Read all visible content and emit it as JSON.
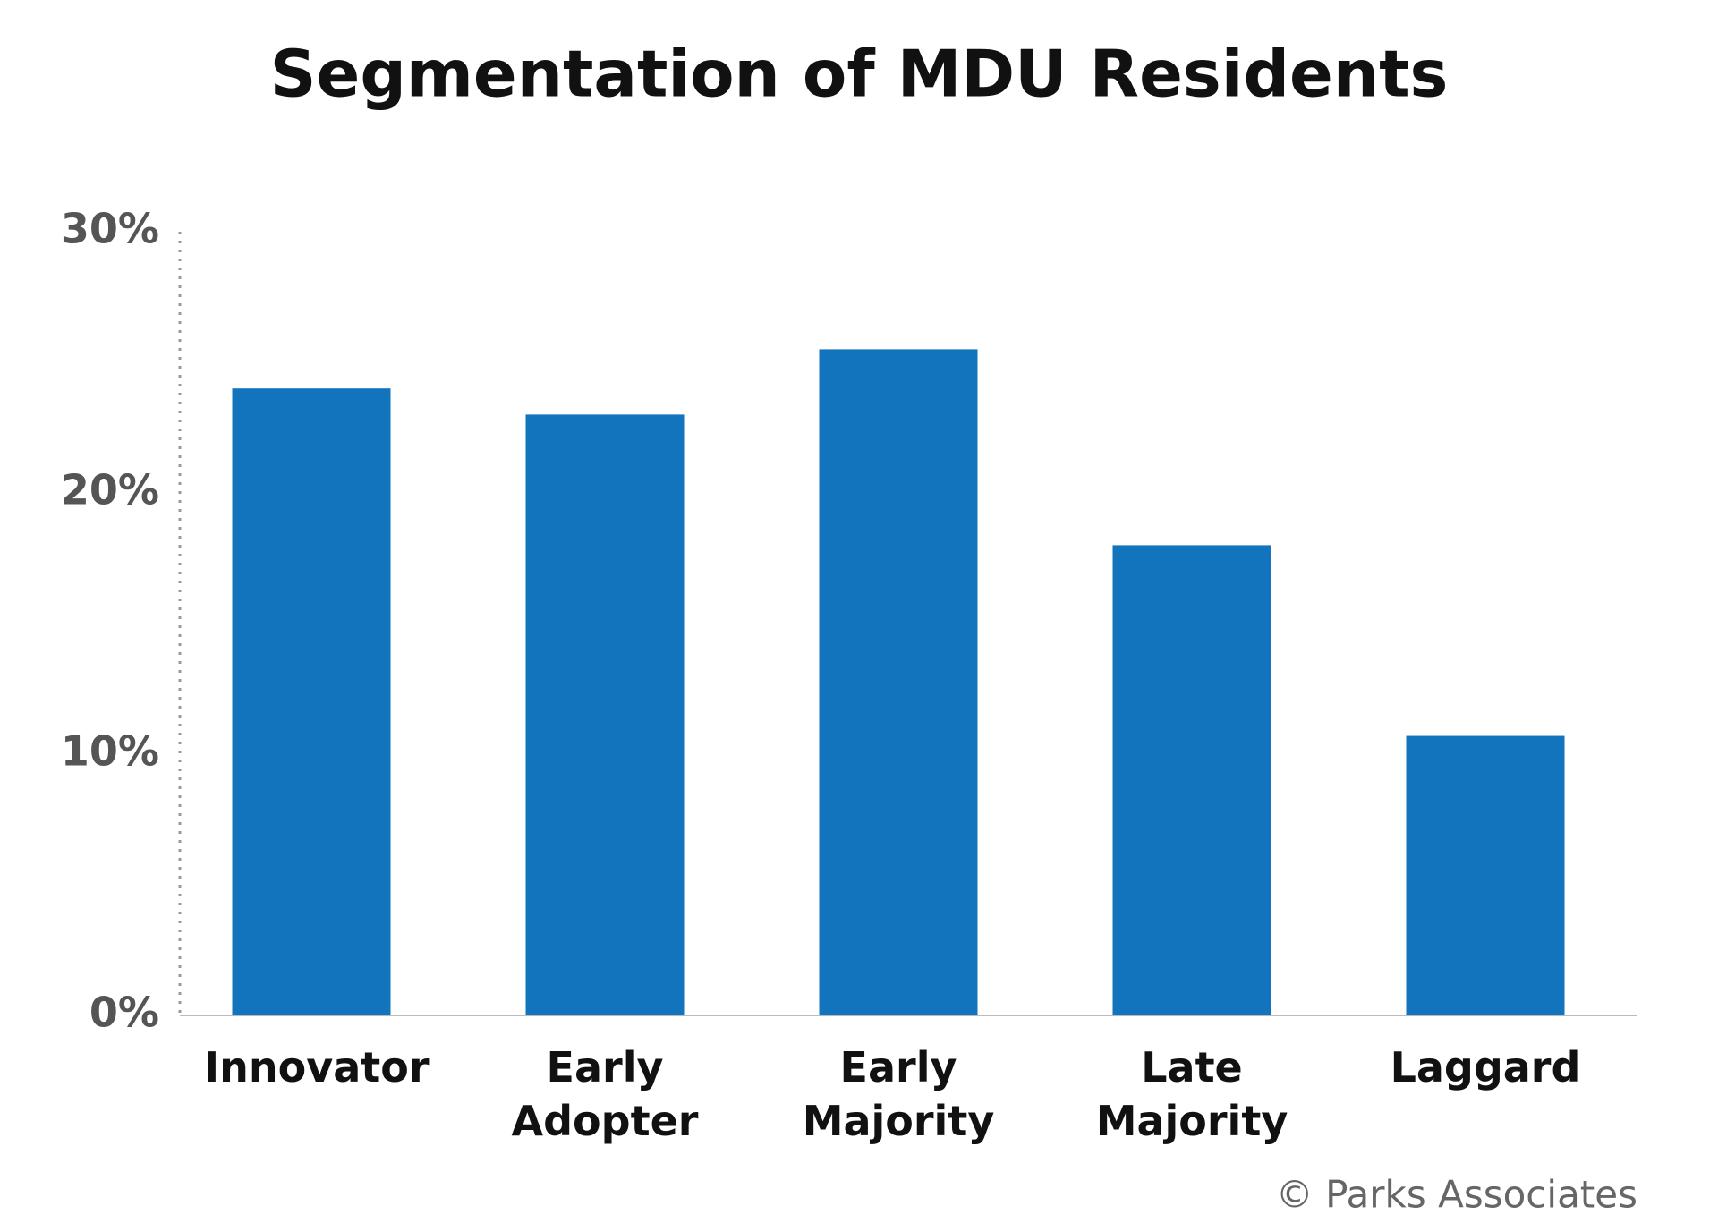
{
  "chart_data": {
    "type": "bar",
    "title": "Segmentation of MDU Residents",
    "categories": [
      "Innovator",
      "Early Adopter",
      "Early Majority",
      "Late Majority",
      "Laggard"
    ],
    "values": [
      24,
      23,
      25.5,
      18,
      10.7
    ],
    "color": "#1274bc",
    "ylim": [
      0,
      30
    ],
    "yticks": [
      {
        "value": 0,
        "label": "0%"
      },
      {
        "value": 10,
        "label": "10%"
      },
      {
        "value": 20,
        "label": "20%"
      },
      {
        "value": 30,
        "label": "30%"
      }
    ],
    "grid": false,
    "source": "© Parks Associates"
  }
}
